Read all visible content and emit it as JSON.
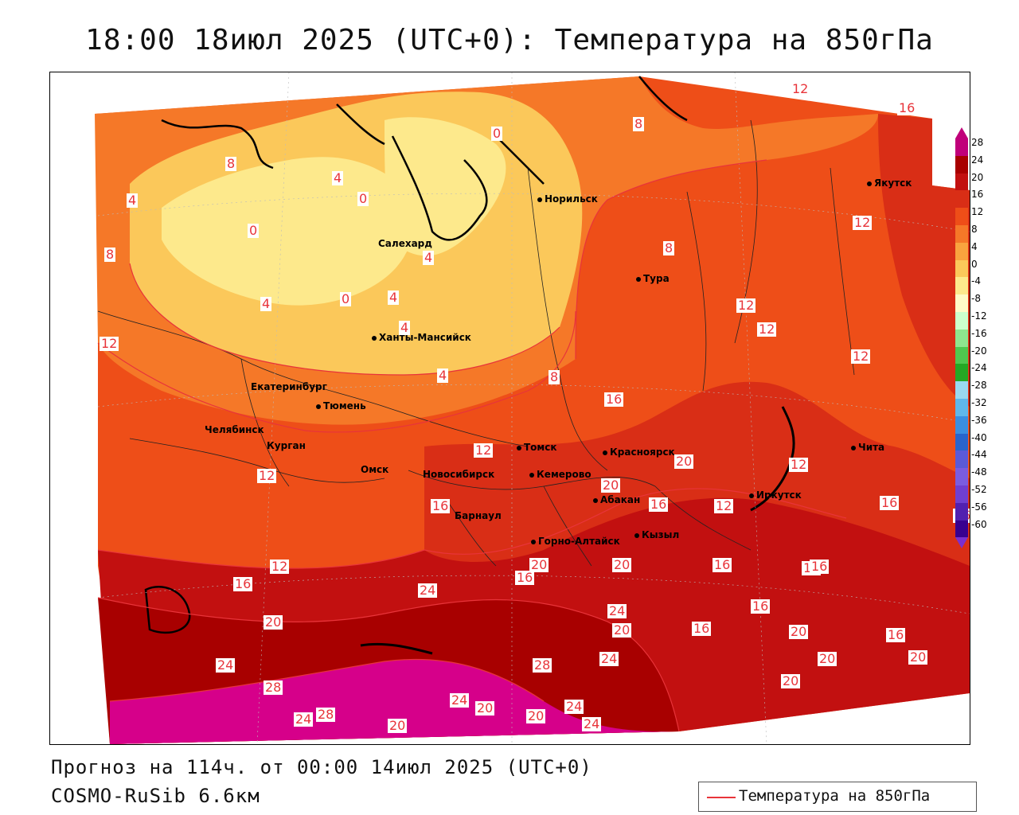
{
  "title": "18:00 18июл 2025 (UTC+0): Температура на 850гПа",
  "footer": {
    "forecast": "Прогноз на 114ч. от 00:00 14июл 2025 (UTC+0)",
    "model": "COSMO-RuSib 6.6км"
  },
  "legend": {
    "label": "Температура на 850гПа",
    "line_color": "#e8343a"
  },
  "colorbar": {
    "ticks": [
      "28",
      "24",
      "20",
      "16",
      "12",
      "8",
      "4",
      "0",
      "-4",
      "-8",
      "-12",
      "-16",
      "-20",
      "-24",
      "-28",
      "-32",
      "-36",
      "-40",
      "-44",
      "-48",
      "-52",
      "-56",
      "-60"
    ],
    "colors": [
      "#c0007a",
      "#a80000",
      "#c21010",
      "#d92e16",
      "#ee4e18",
      "#f57828",
      "#f9a33e",
      "#fbc85a",
      "#fde98c",
      "#fffbc7",
      "#ccffcc",
      "#8ee68e",
      "#4fc84f",
      "#24a824",
      "#9ad8f0",
      "#5fb7ea",
      "#3a8ee0",
      "#2864cc",
      "#5a5ad8",
      "#7a5ce0",
      "#6f3fd0",
      "#5120b0",
      "#380090"
    ]
  },
  "cities": [
    {
      "name": "Норильск"
    },
    {
      "name": "Салехард"
    },
    {
      "name": "Ханты-Мансийск"
    },
    {
      "name": "Тура"
    },
    {
      "name": "Якутск"
    },
    {
      "name": "Екатеринбург"
    },
    {
      "name": "Тюмень"
    },
    {
      "name": "Челябинск"
    },
    {
      "name": "Курган"
    },
    {
      "name": "Омск"
    },
    {
      "name": "Новосибирск"
    },
    {
      "name": "Томск"
    },
    {
      "name": "Кемерово"
    },
    {
      "name": "Красноярск"
    },
    {
      "name": "Абакан"
    },
    {
      "name": "Барнаул"
    },
    {
      "name": "Горно-Алтайск"
    },
    {
      "name": "Кызыл"
    },
    {
      "name": "Иркутск"
    },
    {
      "name": "Чита"
    }
  ],
  "contour_labels": [
    "12",
    "16",
    "8",
    "0",
    "4",
    "8",
    "0",
    "4",
    "0",
    "8",
    "4",
    "4",
    "0",
    "4",
    "4",
    "8",
    "4",
    "8",
    "12",
    "16",
    "12",
    "12",
    "12",
    "12",
    "12",
    "16",
    "20",
    "20",
    "16",
    "12",
    "16",
    "12",
    "16",
    "12",
    "12",
    "16",
    "16",
    "20",
    "16",
    "16",
    "24",
    "20",
    "16",
    "16",
    "20",
    "24",
    "20",
    "20",
    "28",
    "24",
    "20",
    "16",
    "16",
    "20",
    "24",
    "28",
    "24",
    "28",
    "24",
    "20",
    "20",
    "24",
    "24",
    "20",
    "20"
  ]
}
